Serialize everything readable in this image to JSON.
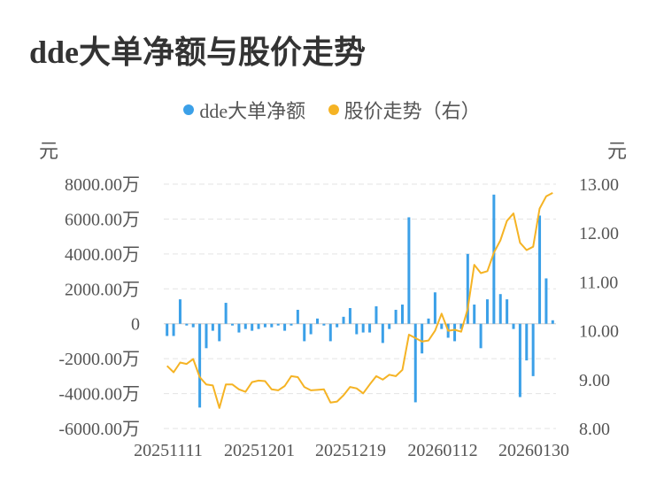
{
  "title": "dde大单净额与股价走势",
  "legend": [
    {
      "label": "dde大单净额",
      "color": "#3ba0e8"
    },
    {
      "label": "股价走势（右）",
      "color": "#f5b324"
    }
  ],
  "chart_data": {
    "type": "bar+line",
    "left_axis": {
      "unit": "元",
      "ticks": [
        "8000.00万",
        "6000.00万",
        "4000.00万",
        "2000.00万",
        "0",
        "-2000.00万",
        "-4000.00万",
        "-6000.00万"
      ],
      "range": [
        -6000,
        8000
      ]
    },
    "right_axis": {
      "unit": "元",
      "ticks": [
        "13.00",
        "12.00",
        "11.00",
        "10.00",
        "9.00",
        "8.00"
      ],
      "range": [
        8.0,
        13.0
      ]
    },
    "x_ticks": [
      "20251111",
      "20251201",
      "20251219",
      "20260112",
      "20260130"
    ],
    "grid": true,
    "legend_position": "top-center",
    "series": [
      {
        "name": "dde大单净额",
        "type": "bar",
        "color": "#3ba0e8",
        "values": [
          -700,
          -700,
          1400,
          -100,
          -200,
          -4800,
          -1400,
          -400,
          -1000,
          1200,
          -100,
          -500,
          -300,
          -400,
          -300,
          -200,
          -200,
          -100,
          -400,
          -100,
          800,
          -1000,
          -600,
          300,
          -100,
          -1000,
          -200,
          400,
          900,
          -600,
          -500,
          -500,
          1000,
          -1100,
          -300,
          800,
          1100,
          6100,
          -4500,
          -1700,
          300,
          1800,
          -300,
          -800,
          -1000,
          -300,
          4000,
          1100,
          -1400,
          1400,
          7400,
          1700,
          1400,
          -300,
          -4200,
          -2100,
          -3000,
          6200,
          2600,
          200
        ]
      },
      {
        "name": "股价走势（右）",
        "type": "line",
        "color": "#f5b324",
        "values": [
          9.28,
          9.15,
          9.35,
          9.32,
          9.42,
          9.05,
          8.9,
          8.88,
          8.42,
          8.9,
          8.9,
          8.8,
          8.75,
          8.95,
          8.98,
          8.97,
          8.8,
          8.78,
          8.87,
          9.07,
          9.05,
          8.85,
          8.78,
          8.79,
          8.8,
          8.53,
          8.55,
          8.68,
          8.85,
          8.82,
          8.72,
          8.9,
          9.07,
          9.0,
          9.1,
          9.07,
          9.2,
          9.92,
          9.85,
          9.78,
          9.8,
          10.0,
          10.35,
          10.0,
          10.02,
          9.98,
          10.45,
          11.35,
          11.18,
          11.22,
          11.6,
          11.85,
          12.25,
          12.4,
          11.8,
          11.65,
          11.72,
          12.5,
          12.75,
          12.82
        ]
      }
    ]
  }
}
